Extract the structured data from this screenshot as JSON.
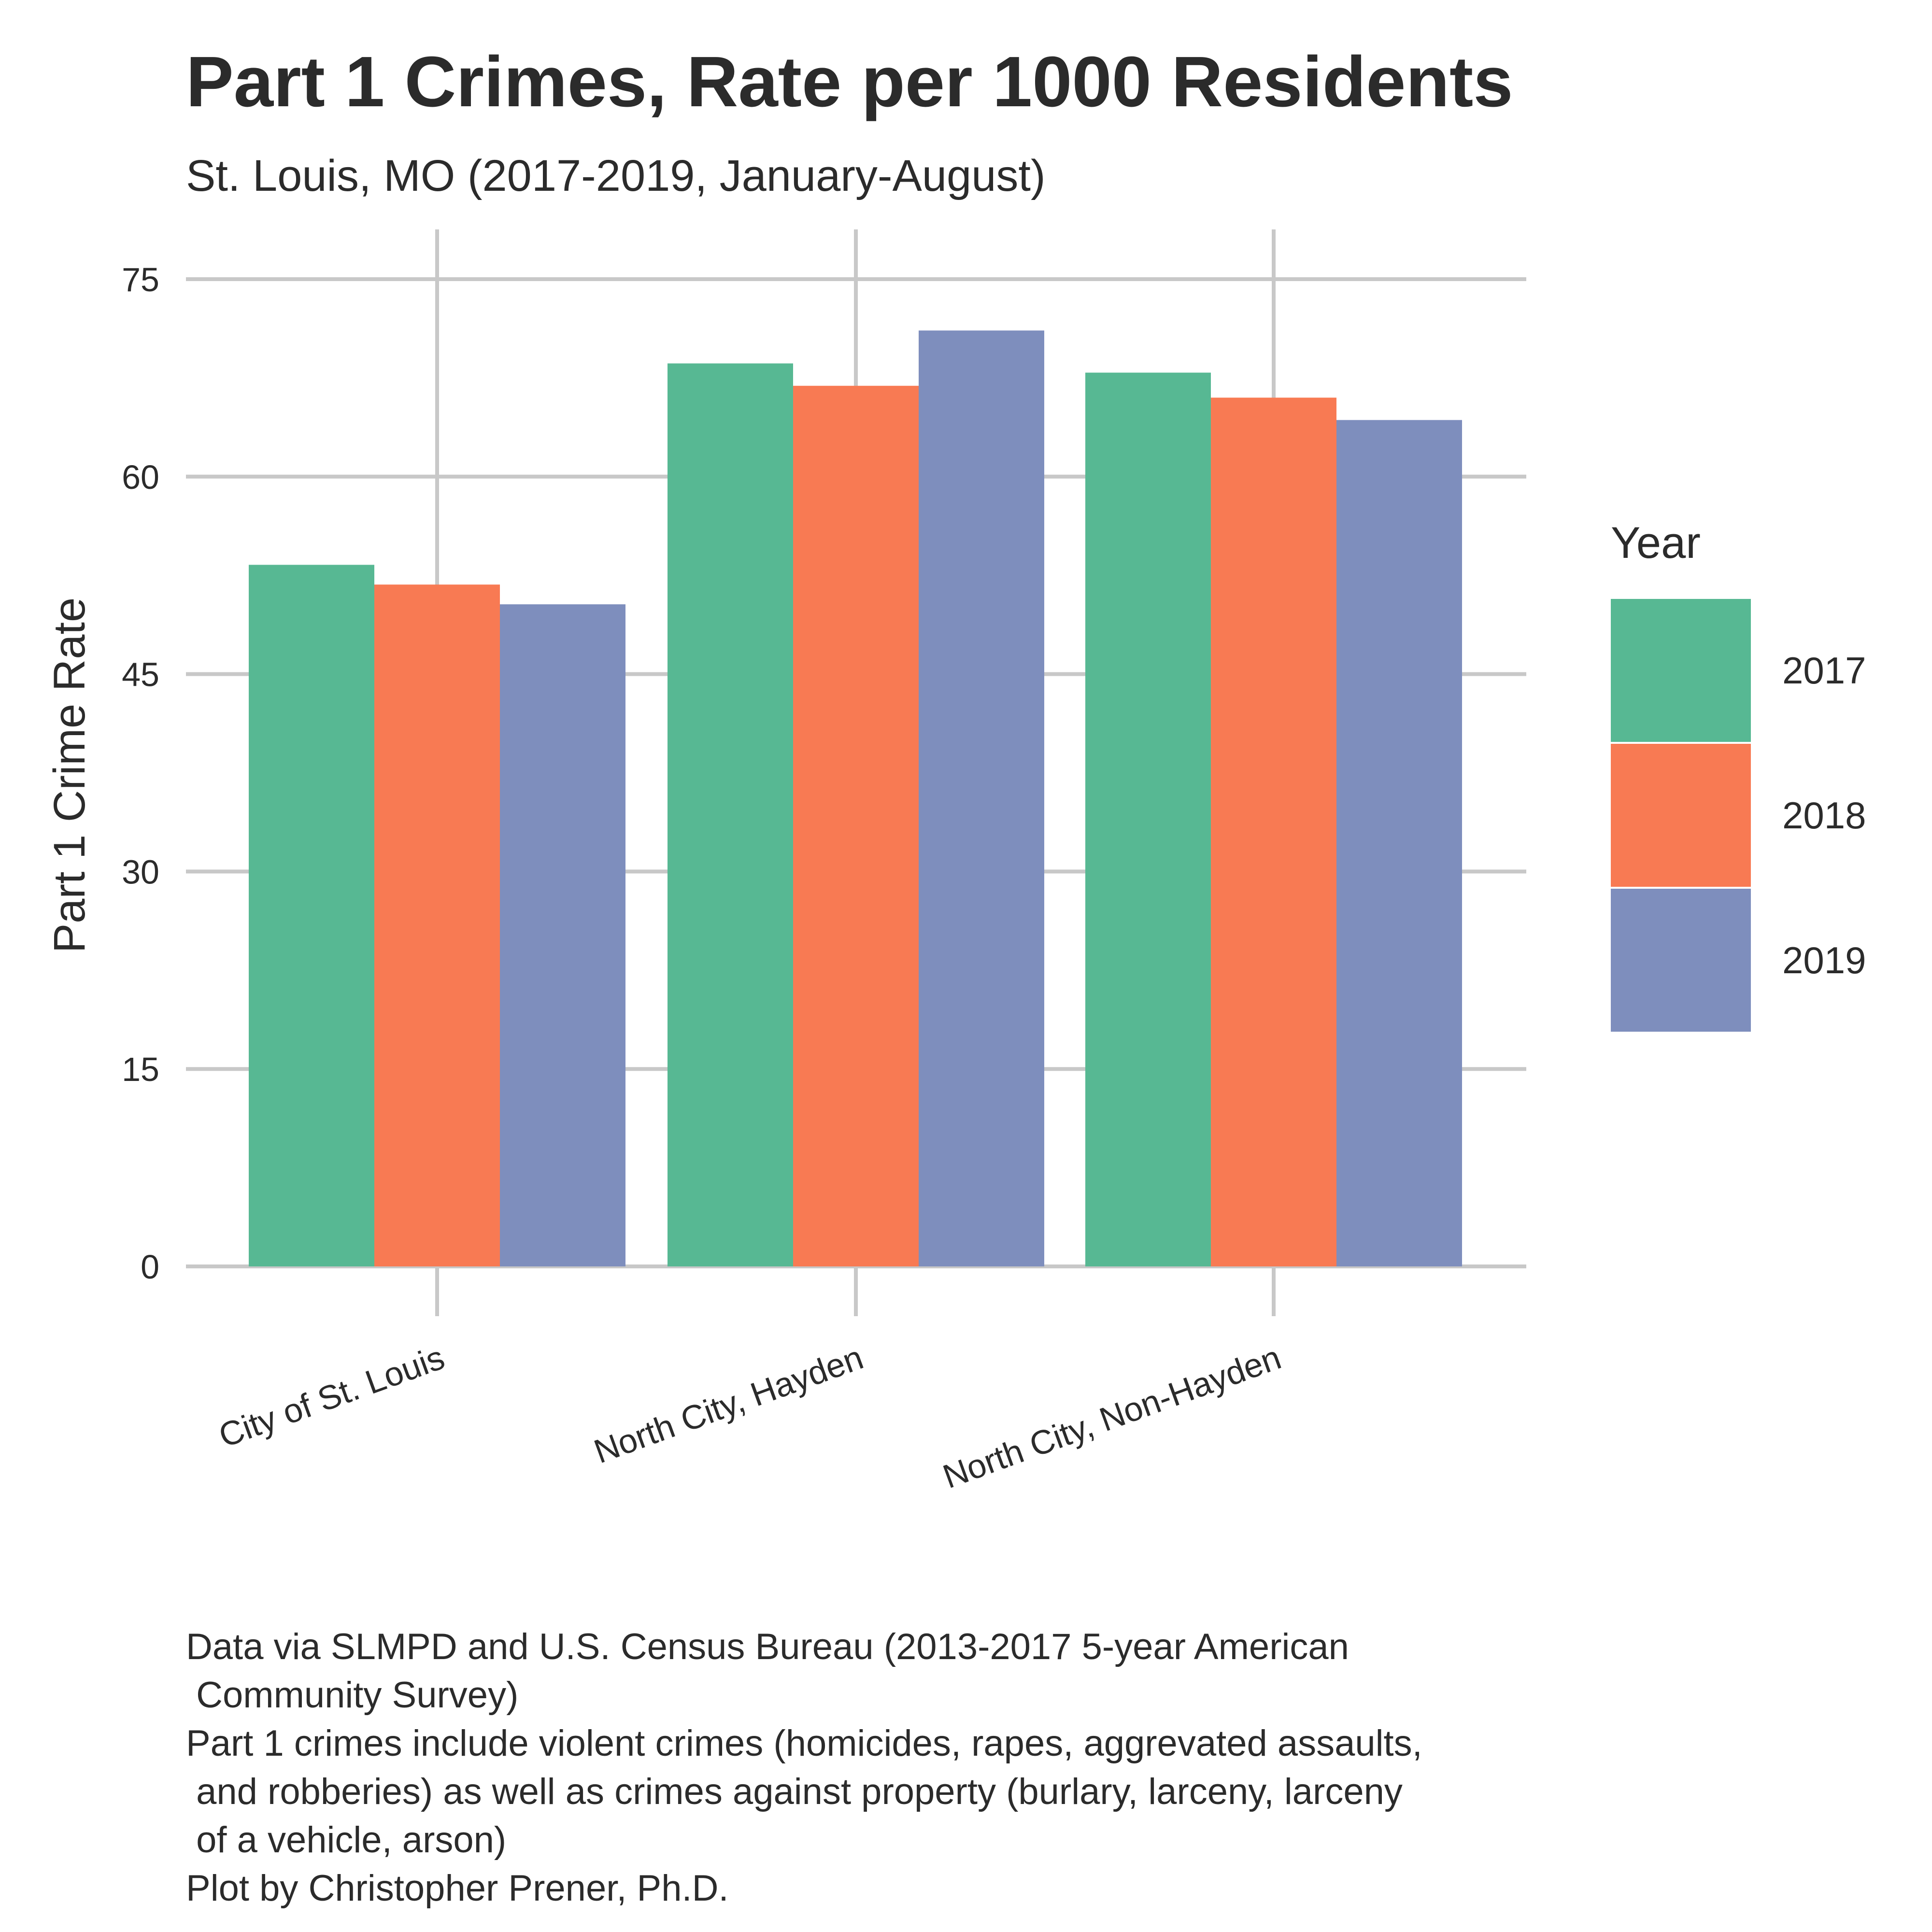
{
  "chart_data": {
    "type": "bar",
    "title": "Part 1 Crimes, Rate per 1000 Residents",
    "subtitle": "St. Louis, MO (2017-2019, January-August)",
    "xlabel": "",
    "ylabel": "Part 1 Crime Rate",
    "ylim": [
      0,
      75
    ],
    "yticks": [
      "0",
      "15",
      "30",
      "45",
      "60",
      "75"
    ],
    "categories": [
      "City of St. Louis",
      "North City, Hayden",
      "North City, Non-Hayden"
    ],
    "legend_title": "Year",
    "legend_position": "right",
    "grid": true,
    "series": [
      {
        "name": "2017",
        "color": "#57b893",
        "values": [
          53.3,
          68.6,
          67.9
        ]
      },
      {
        "name": "2018",
        "color": "#f87a53",
        "values": [
          51.8,
          66.9,
          66.0
        ]
      },
      {
        "name": "2019",
        "color": "#7e8ebd",
        "values": [
          50.3,
          71.1,
          64.3
        ]
      }
    ],
    "caption": [
      "Data via SLMPD and U.S. Census Bureau (2013-2017 5-year American",
      " Community Survey)",
      "Part 1 crimes include violent crimes (homicides, rapes, aggrevated assaults,",
      " and robberies) as well as crimes against property (burlary, larceny, larceny",
      " of a vehicle, arson)",
      "Plot by Christopher Prener, Ph.D."
    ]
  }
}
